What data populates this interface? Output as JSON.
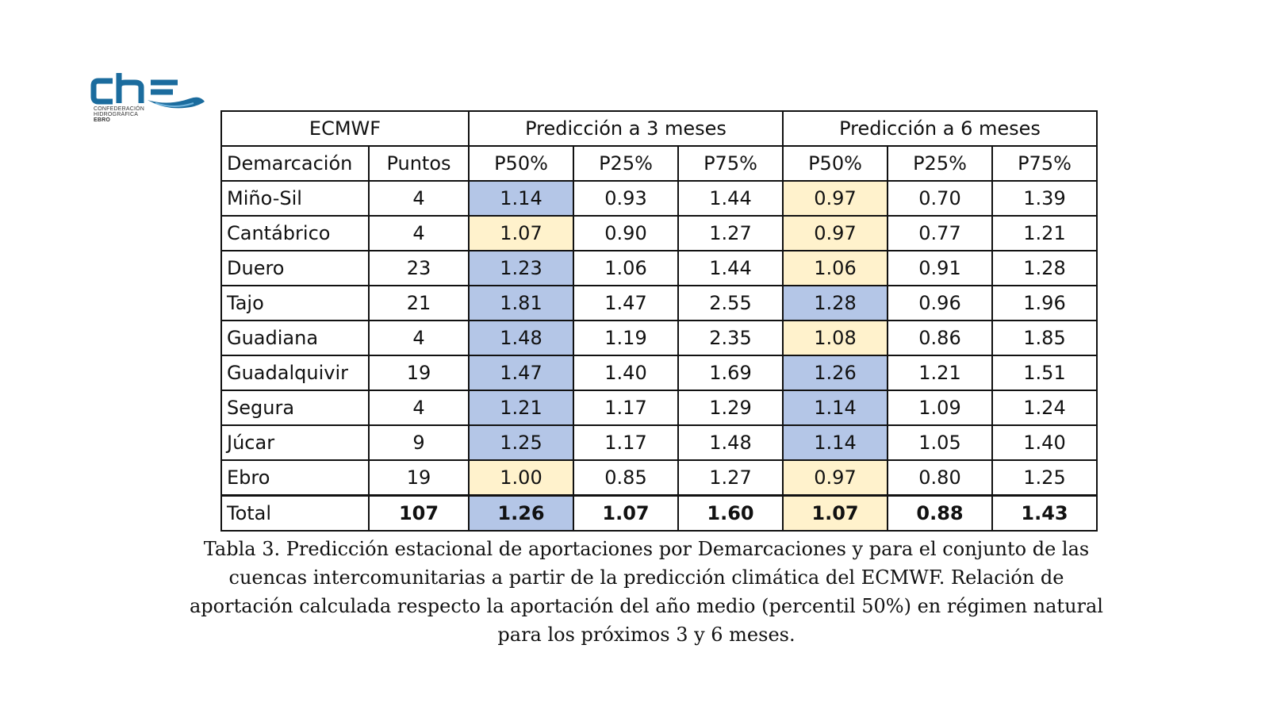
{
  "logo": {
    "name": "che",
    "line1": "CONFEDERACIÓN",
    "line2": "HIDROGRÁFICA",
    "line3": "EBRO",
    "color": "#1b6c9e"
  },
  "table": {
    "header1": {
      "source": "ECMWF",
      "group3": "Predicción a 3 meses",
      "group6": "Predicción a 6 meses"
    },
    "header2": [
      "Demarcación",
      "Puntos",
      "P50%",
      "P25%",
      "P75%",
      "P50%",
      "P25%",
      "P75%"
    ],
    "rows": [
      {
        "name": "Miño-Sil",
        "puntos": "4",
        "v": [
          "1.14",
          "0.93",
          "1.44",
          "0.97",
          "0.70",
          "1.39"
        ],
        "hl3": "blue",
        "hl6": "yellow"
      },
      {
        "name": "Cantábrico",
        "puntos": "4",
        "v": [
          "1.07",
          "0.90",
          "1.27",
          "0.97",
          "0.77",
          "1.21"
        ],
        "hl3": "yellow",
        "hl6": "yellow"
      },
      {
        "name": "Duero",
        "puntos": "23",
        "v": [
          "1.23",
          "1.06",
          "1.44",
          "1.06",
          "0.91",
          "1.28"
        ],
        "hl3": "blue",
        "hl6": "yellow"
      },
      {
        "name": "Tajo",
        "puntos": "21",
        "v": [
          "1.81",
          "1.47",
          "2.55",
          "1.28",
          "0.96",
          "1.96"
        ],
        "hl3": "blue",
        "hl6": "blue"
      },
      {
        "name": "Guadiana",
        "puntos": "4",
        "v": [
          "1.48",
          "1.19",
          "2.35",
          "1.08",
          "0.86",
          "1.85"
        ],
        "hl3": "blue",
        "hl6": "yellow"
      },
      {
        "name": "Guadalquivir",
        "puntos": "19",
        "v": [
          "1.47",
          "1.40",
          "1.69",
          "1.26",
          "1.21",
          "1.51"
        ],
        "hl3": "blue",
        "hl6": "blue"
      },
      {
        "name": "Segura",
        "puntos": "4",
        "v": [
          "1.21",
          "1.17",
          "1.29",
          "1.14",
          "1.09",
          "1.24"
        ],
        "hl3": "blue",
        "hl6": "blue"
      },
      {
        "name": "Júcar",
        "puntos": "9",
        "v": [
          "1.25",
          "1.17",
          "1.48",
          "1.14",
          "1.05",
          "1.40"
        ],
        "hl3": "blue",
        "hl6": "blue"
      },
      {
        "name": "Ebro",
        "puntos": "19",
        "v": [
          "1.00",
          "0.85",
          "1.27",
          "0.97",
          "0.80",
          "1.25"
        ],
        "hl3": "yellow",
        "hl6": "yellow"
      }
    ],
    "total": {
      "name": "Total",
      "puntos": "107",
      "v": [
        "1.26",
        "1.07",
        "1.60",
        "1.07",
        "0.88",
        "1.43"
      ],
      "hl3": "blue",
      "hl6": "yellow"
    },
    "colors": {
      "blue": "#b4c6e7",
      "yellow": "#fff2cc"
    }
  },
  "caption": {
    "line1": "Tabla 3. Predicción estacional de aportaciones por Demarcaciones y para el conjunto de las",
    "line2": "cuencas intercomunitarias a partir de la predicción climática del ECMWF. Relación de",
    "line3": "aportación calculada respecto la aportación del año medio (percentil 50%) en régimen natural",
    "line4": "para los próximos 3 y 6 meses."
  }
}
